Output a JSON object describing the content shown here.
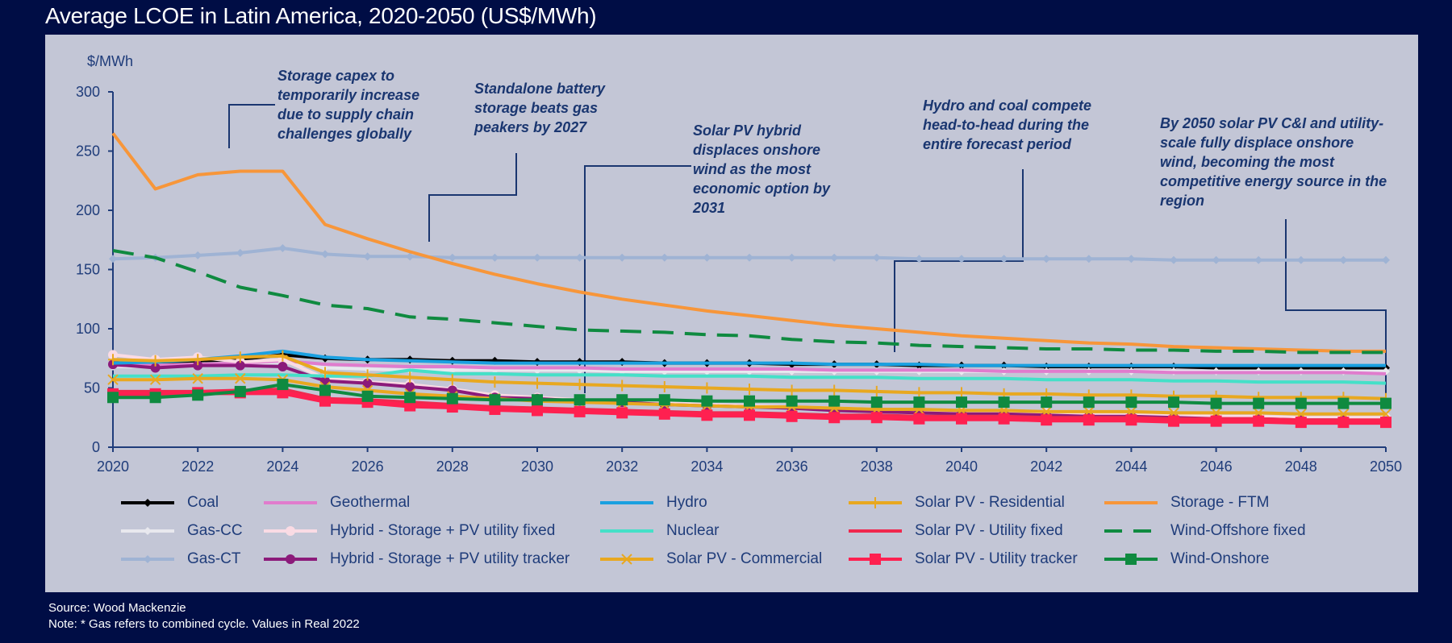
{
  "title": "Average LCOE in Latin America, 2020-2050 (US$/MWh)",
  "footer": {
    "source": "Source: Wood Mackenzie",
    "note": "Note: * Gas refers to combined cycle. Values in Real 2022"
  },
  "annotations": [
    {
      "id": "storage-capex",
      "text": "Storage capex to temporarily increase due to supply chain challenges globally"
    },
    {
      "id": "battery-beats-peakers",
      "text": "Standalone battery storage beats gas peakers by 2027"
    },
    {
      "id": "solar-hybrid-displaces",
      "text": "Solar PV hybrid displaces onshore wind as the most economic option by 2031"
    },
    {
      "id": "hydro-coal-compete",
      "text": "Hydro and coal compete head-to-head during the entire forecast period"
    },
    {
      "id": "solar-2050",
      "text": "By 2050 solar PV C&I and utility-scale fully displace onshore wind, becoming the most competitive energy source in the region"
    }
  ],
  "chart_data": {
    "type": "line",
    "title": "Average LCOE in Latin America, 2020-2050 (US$/MWh)",
    "ylabel": "$/MWh",
    "xlabel": "",
    "ylim": [
      0,
      300
    ],
    "xlim": [
      2020,
      2050
    ],
    "yticks": [
      0,
      50,
      100,
      150,
      200,
      250,
      300
    ],
    "xticks": [
      2020,
      2022,
      2024,
      2026,
      2028,
      2030,
      2032,
      2034,
      2036,
      2038,
      2040,
      2042,
      2044,
      2046,
      2048,
      2050
    ],
    "grid": false,
    "legend_position": "bottom",
    "x": [
      2020,
      2021,
      2022,
      2023,
      2024,
      2025,
      2026,
      2027,
      2028,
      2029,
      2030,
      2031,
      2032,
      2033,
      2034,
      2035,
      2036,
      2037,
      2038,
      2039,
      2040,
      2041,
      2042,
      2043,
      2044,
      2045,
      2046,
      2047,
      2048,
      2049,
      2050
    ],
    "series": [
      {
        "name": "Coal",
        "color": "#000000",
        "marker": "diamond",
        "dash": false,
        "values": [
          72,
          72,
          73,
          74,
          78,
          75,
          74,
          74,
          73,
          73,
          72,
          72,
          72,
          71,
          71,
          71,
          70,
          70,
          70,
          69,
          69,
          69,
          68,
          68,
          68,
          68,
          67,
          67,
          67,
          67,
          67
        ]
      },
      {
        "name": "Gas-CC",
        "color": "#e8e8ee",
        "marker": "diamond",
        "dash": false,
        "values": [
          68,
          68,
          69,
          70,
          72,
          67,
          66,
          65,
          65,
          65,
          65,
          65,
          64,
          64,
          64,
          64,
          64,
          64,
          64,
          64,
          64,
          64,
          64,
          64,
          64,
          64,
          64,
          64,
          64,
          64,
          64
        ]
      },
      {
        "name": "Gas-CT",
        "color": "#9fb3d4",
        "marker": "diamond",
        "dash": false,
        "values": [
          159,
          160,
          162,
          164,
          168,
          163,
          161,
          161,
          160,
          160,
          160,
          160,
          160,
          160,
          160,
          160,
          160,
          160,
          160,
          159,
          159,
          159,
          159,
          159,
          159,
          158,
          158,
          158,
          158,
          158,
          158
        ]
      },
      {
        "name": "Geothermal",
        "color": "#e07ccd",
        "marker": "none",
        "dash": false,
        "values": [
          69,
          69,
          70,
          71,
          73,
          70,
          69,
          68,
          68,
          67,
          67,
          67,
          66,
          66,
          66,
          66,
          66,
          65,
          65,
          65,
          65,
          64,
          64,
          64,
          64,
          63,
          63,
          63,
          63,
          63,
          62
        ]
      },
      {
        "name": "Hybrid - Storage + PV utility fixed",
        "color": "#fadbe4",
        "marker": "circle",
        "dash": false,
        "values": [
          78,
          74,
          76,
          72,
          74,
          58,
          55,
          53,
          49,
          44,
          42,
          40,
          39,
          38,
          36,
          35,
          34,
          33,
          32,
          31,
          30,
          29,
          29,
          28,
          27,
          27,
          26,
          26,
          25,
          25,
          25
        ]
      },
      {
        "name": "Hybrid - Storage + PV utility tracker",
        "color": "#8b1a7a",
        "marker": "circle",
        "dash": false,
        "values": [
          70,
          67,
          69,
          69,
          68,
          56,
          54,
          51,
          48,
          42,
          41,
          39,
          38,
          36,
          35,
          34,
          33,
          31,
          30,
          29,
          28,
          28,
          27,
          26,
          26,
          25,
          24,
          24,
          23,
          23,
          22
        ]
      },
      {
        "name": "Hydro",
        "color": "#1aa0e0",
        "marker": "none",
        "dash": false,
        "values": [
          71,
          72,
          74,
          77,
          81,
          76,
          74,
          73,
          72,
          71,
          71,
          71,
          71,
          71,
          71,
          71,
          71,
          70,
          70,
          70,
          69,
          69,
          69,
          69,
          69,
          69,
          69,
          69,
          69,
          69,
          69
        ]
      },
      {
        "name": "Nuclear",
        "color": "#45e0c8",
        "marker": "none",
        "dash": false,
        "values": [
          60,
          60,
          60,
          61,
          61,
          60,
          60,
          65,
          62,
          62,
          61,
          61,
          61,
          60,
          60,
          60,
          59,
          59,
          59,
          58,
          58,
          58,
          57,
          57,
          57,
          56,
          56,
          55,
          55,
          55,
          54
        ]
      },
      {
        "name": "Solar PV - Commercial",
        "color": "#e8a820",
        "marker": "x",
        "dash": false,
        "values": [
          57,
          57,
          58,
          58,
          57,
          51,
          48,
          45,
          43,
          41,
          39,
          38,
          37,
          36,
          35,
          34,
          34,
          33,
          32,
          32,
          31,
          31,
          30,
          30,
          30,
          29,
          29,
          29,
          28,
          28,
          28
        ]
      },
      {
        "name": "Solar PV - Residential",
        "color": "#e8a820",
        "marker": "plus",
        "dash": false,
        "values": [
          74,
          73,
          74,
          76,
          77,
          63,
          61,
          59,
          57,
          55,
          54,
          53,
          52,
          51,
          50,
          49,
          48,
          48,
          47,
          46,
          46,
          45,
          45,
          44,
          44,
          43,
          43,
          42,
          42,
          42,
          41
        ]
      },
      {
        "name": "Solar PV - Utility fixed",
        "color": "#f0284e",
        "marker": "none",
        "dash": false,
        "values": [
          47,
          47,
          47,
          48,
          49,
          41,
          40,
          38,
          36,
          34,
          33,
          32,
          31,
          30,
          29,
          29,
          28,
          27,
          27,
          26,
          26,
          26,
          25,
          25,
          25,
          24,
          24,
          24,
          23,
          23,
          23
        ]
      },
      {
        "name": "Solar PV - Utility tracker",
        "color": "#ff2050",
        "marker": "square",
        "dash": false,
        "values": [
          45,
          45,
          46,
          46,
          46,
          39,
          38,
          35,
          34,
          32,
          31,
          30,
          29,
          28,
          27,
          27,
          26,
          25,
          25,
          24,
          24,
          24,
          23,
          23,
          23,
          22,
          22,
          22,
          21,
          21,
          21
        ]
      },
      {
        "name": "Storage - FTM",
        "color": "#f7963a",
        "marker": "none",
        "dash": false,
        "values": [
          265,
          218,
          230,
          233,
          233,
          188,
          176,
          165,
          155,
          146,
          138,
          131,
          125,
          120,
          115,
          111,
          107,
          103,
          100,
          97,
          94,
          92,
          90,
          88,
          87,
          85,
          84,
          83,
          82,
          81,
          81
        ]
      },
      {
        "name": "Wind-Offshore fixed",
        "color": "#0f8a40",
        "marker": "none",
        "dash": true,
        "values": [
          166,
          160,
          148,
          135,
          128,
          120,
          117,
          110,
          108,
          105,
          102,
          99,
          98,
          97,
          95,
          94,
          91,
          89,
          88,
          86,
          85,
          84,
          83,
          83,
          82,
          82,
          81,
          81,
          80,
          80,
          80
        ]
      },
      {
        "name": "Wind-Onshore",
        "color": "#0f8a40",
        "marker": "square",
        "dash": false,
        "values": [
          42,
          42,
          44,
          47,
          53,
          48,
          43,
          42,
          41,
          40,
          40,
          40,
          40,
          40,
          39,
          39,
          39,
          39,
          38,
          38,
          38,
          38,
          38,
          38,
          38,
          38,
          37,
          37,
          37,
          37,
          37
        ]
      }
    ]
  }
}
